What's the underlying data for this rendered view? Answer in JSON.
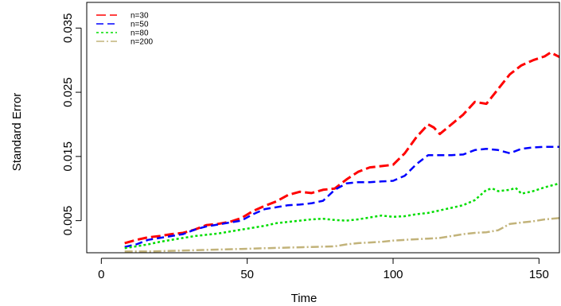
{
  "chart_data": {
    "type": "line",
    "xlabel": "Time",
    "ylabel": "Standard Error",
    "xlim": [
      -5,
      157
    ],
    "ylim": [
      0,
      0.039
    ],
    "xticks": [
      0,
      50,
      100,
      150
    ],
    "xtick_labels": [
      "0",
      "50",
      "100",
      "150"
    ],
    "yticks": [
      0.005,
      0.015,
      0.025,
      0.035
    ],
    "ytick_labels": [
      "0.005",
      "0.015",
      "0.025",
      "0.035"
    ],
    "grid": false,
    "legend_position": "top-left",
    "series": [
      {
        "name": "n=30",
        "color": "#ff0000",
        "dash": "12,5",
        "width": 3,
        "x": [
          8,
          12,
          16,
          20,
          24,
          28,
          32,
          36,
          40,
          44,
          48,
          52,
          56,
          60,
          64,
          68,
          72,
          76,
          80,
          84,
          88,
          92,
          96,
          100,
          104,
          108,
          112,
          114,
          116,
          120,
          124,
          128,
          132,
          136,
          140,
          144,
          148,
          152,
          154,
          157
        ],
        "y": [
          0.0015,
          0.002,
          0.0024,
          0.0026,
          0.0029,
          0.0031,
          0.0036,
          0.0043,
          0.0045,
          0.0048,
          0.0054,
          0.0065,
          0.0073,
          0.008,
          0.009,
          0.0095,
          0.0093,
          0.0098,
          0.01,
          0.0114,
          0.0126,
          0.0133,
          0.0135,
          0.0137,
          0.0155,
          0.018,
          0.02,
          0.0195,
          0.0185,
          0.02,
          0.0215,
          0.0235,
          0.0232,
          0.0255,
          0.0278,
          0.0292,
          0.03,
          0.0306,
          0.0312,
          0.0305
        ]
      },
      {
        "name": "n=50",
        "color": "#0000ff",
        "dash": "9,5",
        "width": 2.5,
        "x": [
          8,
          12,
          16,
          20,
          24,
          28,
          32,
          36,
          40,
          44,
          48,
          52,
          56,
          60,
          64,
          68,
          72,
          76,
          80,
          84,
          88,
          92,
          96,
          100,
          104,
          108,
          112,
          116,
          120,
          124,
          128,
          132,
          136,
          140,
          144,
          148,
          152,
          157
        ],
        "y": [
          0.0009,
          0.0013,
          0.002,
          0.0023,
          0.0026,
          0.0029,
          0.0036,
          0.0041,
          0.0044,
          0.0047,
          0.005,
          0.006,
          0.0068,
          0.0071,
          0.0074,
          0.0075,
          0.0077,
          0.0081,
          0.0098,
          0.0108,
          0.011,
          0.011,
          0.0111,
          0.0112,
          0.012,
          0.0138,
          0.0152,
          0.0152,
          0.0152,
          0.0153,
          0.016,
          0.0162,
          0.016,
          0.0155,
          0.0162,
          0.0164,
          0.0165,
          0.0165
        ]
      },
      {
        "name": "n=80",
        "color": "#00dd00",
        "dash": "3,3",
        "width": 2.5,
        "x": [
          8,
          12,
          16,
          20,
          24,
          28,
          32,
          36,
          40,
          44,
          48,
          52,
          56,
          60,
          64,
          68,
          72,
          76,
          80,
          84,
          88,
          92,
          96,
          100,
          104,
          108,
          112,
          116,
          120,
          124,
          128,
          132,
          134,
          136,
          140,
          142,
          144,
          148,
          152,
          157
        ],
        "y": [
          0.0007,
          0.001,
          0.0013,
          0.0017,
          0.002,
          0.0023,
          0.0026,
          0.0028,
          0.003,
          0.0033,
          0.0036,
          0.0039,
          0.0042,
          0.0046,
          0.0048,
          0.005,
          0.0052,
          0.0053,
          0.0051,
          0.005,
          0.0052,
          0.0055,
          0.0058,
          0.0056,
          0.0057,
          0.006,
          0.0062,
          0.0066,
          0.007,
          0.0074,
          0.0082,
          0.0098,
          0.01,
          0.0096,
          0.0098,
          0.0101,
          0.0092,
          0.0096,
          0.0102,
          0.0108
        ]
      },
      {
        "name": "n=200",
        "color": "#c2b37a",
        "dash": "10,3,2,3",
        "width": 2.5,
        "x": [
          8,
          16,
          24,
          32,
          40,
          48,
          56,
          64,
          72,
          80,
          84,
          88,
          92,
          96,
          100,
          104,
          108,
          112,
          116,
          120,
          124,
          128,
          132,
          136,
          140,
          144,
          148,
          152,
          157
        ],
        "y": [
          0.0002,
          0.0002,
          0.0003,
          0.0004,
          0.0005,
          0.0006,
          0.0007,
          0.0008,
          0.0009,
          0.001,
          0.0013,
          0.0015,
          0.0016,
          0.0017,
          0.0019,
          0.002,
          0.0021,
          0.0022,
          0.0023,
          0.0026,
          0.0029,
          0.0031,
          0.0032,
          0.0035,
          0.0045,
          0.0047,
          0.0049,
          0.0052,
          0.0054
        ]
      }
    ]
  }
}
